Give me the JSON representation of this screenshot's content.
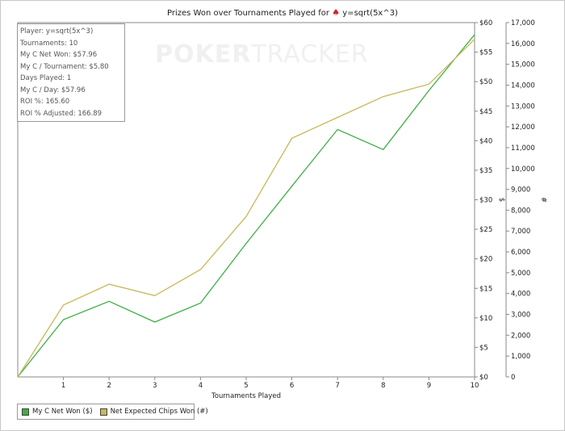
{
  "window": {
    "title_prefix": "Prizes Won over Tournaments Played for",
    "player_name": "y=sqrt(5x^3)",
    "watermark_bold": "POKER",
    "watermark_light": "TRACKER"
  },
  "stats": [
    "Player: y=sqrt(5x^3)",
    "Tournaments: 10",
    "My C Net Won: $57.96",
    "My C / Tournament: $5.80",
    "Days Played: 1",
    "My C / Day: $57.96",
    "ROI %: 165.60",
    "ROI % Adjusted: 166.89"
  ],
  "legend": [
    {
      "label": "My C Net Won ($)",
      "color": "#3cb043"
    },
    {
      "label": "Net Expected Chips Won (#)",
      "color": "#c8b85a"
    }
  ],
  "chart_data": {
    "type": "line",
    "xlabel": "Tournaments Played",
    "ylabel_left": "$",
    "ylabel_right": "#",
    "x": [
      0,
      1,
      2,
      3,
      4,
      5,
      6,
      7,
      8,
      9,
      10
    ],
    "xlim": [
      0,
      10
    ],
    "x_ticks": [
      1,
      2,
      3,
      4,
      5,
      6,
      7,
      8,
      9,
      10
    ],
    "y_left_lim": [
      0,
      60
    ],
    "y_left_ticks": [
      "$0",
      "$5",
      "$10",
      "$15",
      "$20",
      "$25",
      "$30",
      "$35",
      "$40",
      "$45",
      "$50",
      "$55",
      "$60"
    ],
    "y_right_lim": [
      0,
      17000
    ],
    "y_right_ticks": [
      "0",
      "1,000",
      "2,000",
      "3,000",
      "4,000",
      "5,000",
      "6,000",
      "7,000",
      "8,000",
      "9,000",
      "10,000",
      "11,000",
      "12,000",
      "13,000",
      "14,000",
      "15,000",
      "16,000",
      "17,000"
    ],
    "grid": false,
    "legend_position": "bottom-left",
    "series": [
      {
        "name": "My C Net Won ($)",
        "axis": "left",
        "color": "#3cb043",
        "values": [
          0,
          9.7,
          12.8,
          9.3,
          12.5,
          22.6,
          32.3,
          41.9,
          38.5,
          48.5,
          57.96
        ]
      },
      {
        "name": "Net Expected Chips Won (#)",
        "axis": "right",
        "color": "#c8b85a",
        "values": [
          0,
          3450,
          4450,
          3900,
          5150,
          7700,
          11450,
          12450,
          13450,
          14050,
          16200
        ]
      }
    ]
  }
}
